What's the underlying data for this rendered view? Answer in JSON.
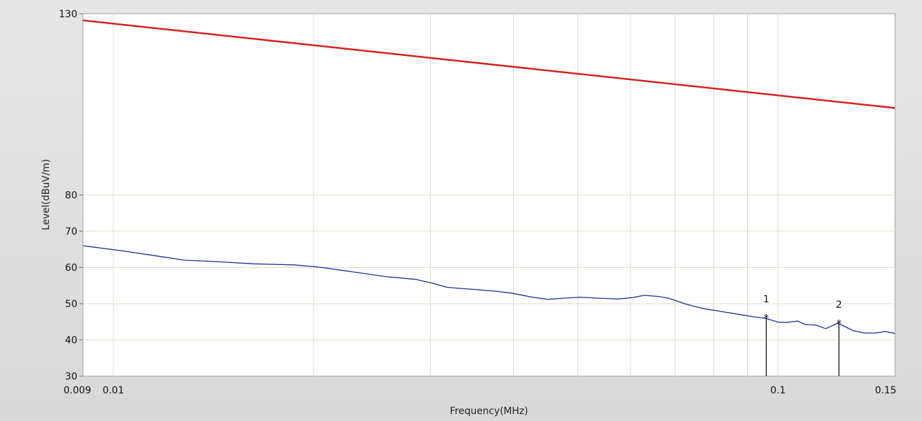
{
  "chart_data": {
    "type": "line",
    "xlabel": "Frequency(MHz)",
    "ylabel": "Level(dBuV/m)",
    "x_scale": "log",
    "xlim": [
      0.009,
      0.15
    ],
    "ylim": [
      30,
      130
    ],
    "grid": true,
    "x_ticks": [
      {
        "value": 0.009,
        "label": "0.009"
      },
      {
        "value": 0.01,
        "label": "0.01"
      },
      {
        "value": 0.1,
        "label": "0.1"
      },
      {
        "value": 0.15,
        "label": "0.15"
      }
    ],
    "y_ticks": [
      {
        "value": 30,
        "label": "30"
      },
      {
        "value": 40,
        "label": "40"
      },
      {
        "value": 50,
        "label": "50"
      },
      {
        "value": 60,
        "label": "60"
      },
      {
        "value": 70,
        "label": "70"
      },
      {
        "value": 80,
        "label": "80"
      },
      {
        "value": 130,
        "label": "130"
      }
    ],
    "x_gridlines": [
      0.01,
      0.02,
      0.03,
      0.04,
      0.05,
      0.06,
      0.07,
      0.08,
      0.09,
      0.1
    ],
    "y_gridlines": [
      40,
      50,
      60,
      70,
      80
    ],
    "series": [
      {
        "color": "#d42020",
        "points": [
          [
            0.009,
            128.2
          ],
          [
            0.15,
            104.0
          ]
        ]
      },
      {
        "color": "#1e2a8c",
        "points": [
          [
            0.009,
            66.0
          ],
          [
            0.0104,
            64.5
          ],
          [
            0.0118,
            63.0
          ],
          [
            0.0128,
            62.0
          ],
          [
            0.014,
            61.7
          ],
          [
            0.0163,
            61.0
          ],
          [
            0.0187,
            60.7
          ],
          [
            0.0204,
            60.1
          ],
          [
            0.0227,
            58.9
          ],
          [
            0.0256,
            57.5
          ],
          [
            0.0285,
            56.7
          ],
          [
            0.0303,
            55.6
          ],
          [
            0.0318,
            54.5
          ],
          [
            0.0345,
            54.0
          ],
          [
            0.0373,
            53.5
          ],
          [
            0.0398,
            52.9
          ],
          [
            0.0427,
            51.8
          ],
          [
            0.045,
            51.2
          ],
          [
            0.0476,
            51.5
          ],
          [
            0.0503,
            51.8
          ],
          [
            0.0539,
            51.5
          ],
          [
            0.0575,
            51.3
          ],
          [
            0.0605,
            51.7
          ],
          [
            0.0629,
            52.3
          ],
          [
            0.066,
            52.0
          ],
          [
            0.0685,
            51.5
          ],
          [
            0.0726,
            49.9
          ],
          [
            0.0769,
            48.7
          ],
          [
            0.0818,
            47.9
          ],
          [
            0.0869,
            47.1
          ],
          [
            0.0917,
            46.4
          ],
          [
            0.096,
            45.9
          ],
          [
            0.1,
            44.9
          ],
          [
            0.103,
            44.8
          ],
          [
            0.107,
            45.2
          ],
          [
            0.11,
            44.2
          ],
          [
            0.114,
            44.1
          ],
          [
            0.118,
            43.1
          ],
          [
            0.123,
            44.6
          ],
          [
            0.126,
            43.7
          ],
          [
            0.13,
            42.5
          ],
          [
            0.135,
            41.9
          ],
          [
            0.14,
            41.9
          ],
          [
            0.145,
            42.3
          ],
          [
            0.15,
            41.8
          ]
        ]
      }
    ],
    "markers": [
      {
        "label": "1",
        "x": 0.096,
        "y": 46.0
      },
      {
        "label": "2",
        "x": 0.1235,
        "y": 44.5
      }
    ]
  }
}
